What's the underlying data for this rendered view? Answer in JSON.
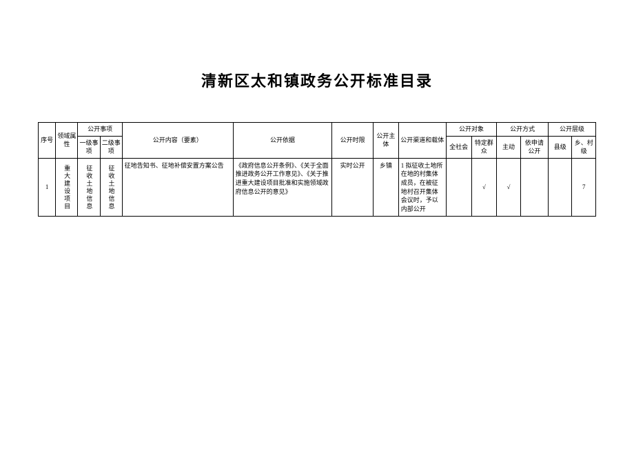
{
  "title": "清新区太和镇政务公开标准目录",
  "headers": {
    "seq": "序号",
    "domain": "领域属性",
    "items_group": "公开事项",
    "item_l1": "一级事项",
    "item_l2": "二级事项",
    "content": "公开内容（要素）",
    "basis": "公开依据",
    "timing": "公开时限",
    "body": "公开主体",
    "channel": "公开渠道和载体",
    "target_group": "公开对象",
    "target_all": "全社会",
    "target_specific": "特定群众",
    "method_group": "公开方式",
    "method_active": "主动",
    "method_apply": "依申请公开",
    "level_group": "公开层级",
    "level_county": "县级",
    "level_village": "乡、村级"
  },
  "row": {
    "seq": "1",
    "domain": "重大建设项目",
    "item_l1": "征收土地信息",
    "item_l2": "征收土地信息",
    "content": "征地告知书、征地补偿安置方案公告",
    "basis": "《政府信息公开条例》、《关于全面推进政务公开工作意见》、《关于推进重大建设项目批准和实施领域政府信息公开的意见》",
    "timing": "实时公开",
    "body": "乡镇",
    "channel": "1 拟征收土地所在地的村集体成员，在被征地村召开集体会议时，予以内部公开",
    "target_all": "",
    "target_specific": "√",
    "method_active": "√",
    "method_apply": "",
    "level_county": "",
    "level_village": "7"
  }
}
